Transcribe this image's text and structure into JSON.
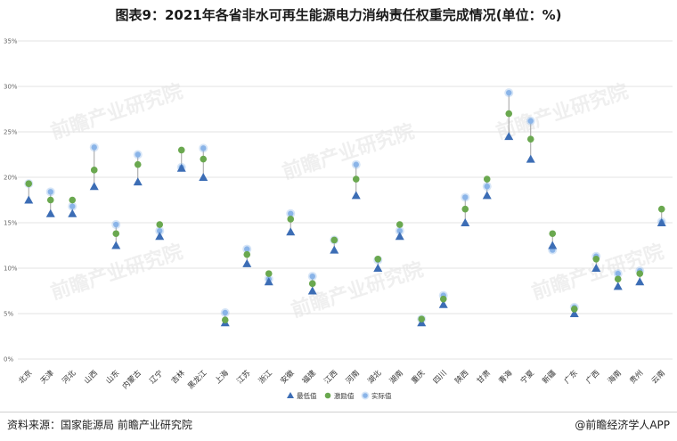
{
  "title": "图表9：2021年各省非水可再生能源电力消纳责任权重完成情况(单位：%)",
  "source": "资料来源：国家能源局 前瞻产业研究院",
  "brand": "@前瞻经济学人APP",
  "watermark": "前瞻产业研究院",
  "colors": {
    "min": "#3c6db5",
    "incentive": "#6aa84f",
    "actual": "#8ab4e8",
    "stem": "#a0a0a0",
    "grid": "#e3e3e3"
  },
  "chart_data": {
    "type": "scatter",
    "ylim": [
      0,
      35
    ],
    "yticks": [
      "0%",
      "5%",
      "10%",
      "15%",
      "20%",
      "25%",
      "30%",
      "35%"
    ],
    "grid": true,
    "legend_position": "bottom",
    "categories": [
      "北京",
      "天津",
      "河北",
      "山西",
      "山东",
      "内蒙古",
      "辽宁",
      "吉林",
      "黑龙江",
      "上海",
      "江苏",
      "浙江",
      "安徽",
      "福建",
      "江西",
      "河南",
      "湖北",
      "湖南",
      "重庆",
      "四川",
      "陕西",
      "甘肃",
      "青海",
      "宁夏",
      "新疆",
      "广东",
      "广西",
      "海南",
      "贵州",
      "云南"
    ],
    "series": [
      {
        "name": "最低值",
        "values": [
          17.5,
          16.0,
          16.0,
          19.0,
          12.5,
          19.5,
          13.5,
          21.0,
          20.0,
          4.0,
          10.5,
          8.5,
          14.0,
          7.5,
          12.0,
          18.0,
          10.0,
          13.5,
          4.0,
          6.0,
          15.0,
          18.0,
          24.5,
          22.0,
          12.5,
          5.0,
          10.0,
          8.0,
          8.5,
          15.0
        ]
      },
      {
        "name": "激励值",
        "values": [
          19.3,
          17.5,
          17.5,
          20.8,
          13.8,
          21.4,
          14.8,
          23.0,
          22.0,
          4.3,
          11.5,
          9.4,
          15.4,
          8.3,
          13.1,
          19.8,
          11.0,
          14.8,
          4.4,
          6.6,
          16.5,
          19.8,
          27.0,
          24.2,
          13.8,
          5.5,
          11.0,
          8.8,
          9.4,
          16.5
        ]
      },
      {
        "name": "实际值",
        "values": [
          19.3,
          18.4,
          16.8,
          23.3,
          14.8,
          22.5,
          14.1,
          21.1,
          23.2,
          5.1,
          12.1,
          8.8,
          16.0,
          9.1,
          13.1,
          21.4,
          10.9,
          14.1,
          4.4,
          7.0,
          17.8,
          19.0,
          29.3,
          26.2,
          12.0,
          5.7,
          11.3,
          9.4,
          9.7,
          15.1
        ]
      }
    ]
  }
}
